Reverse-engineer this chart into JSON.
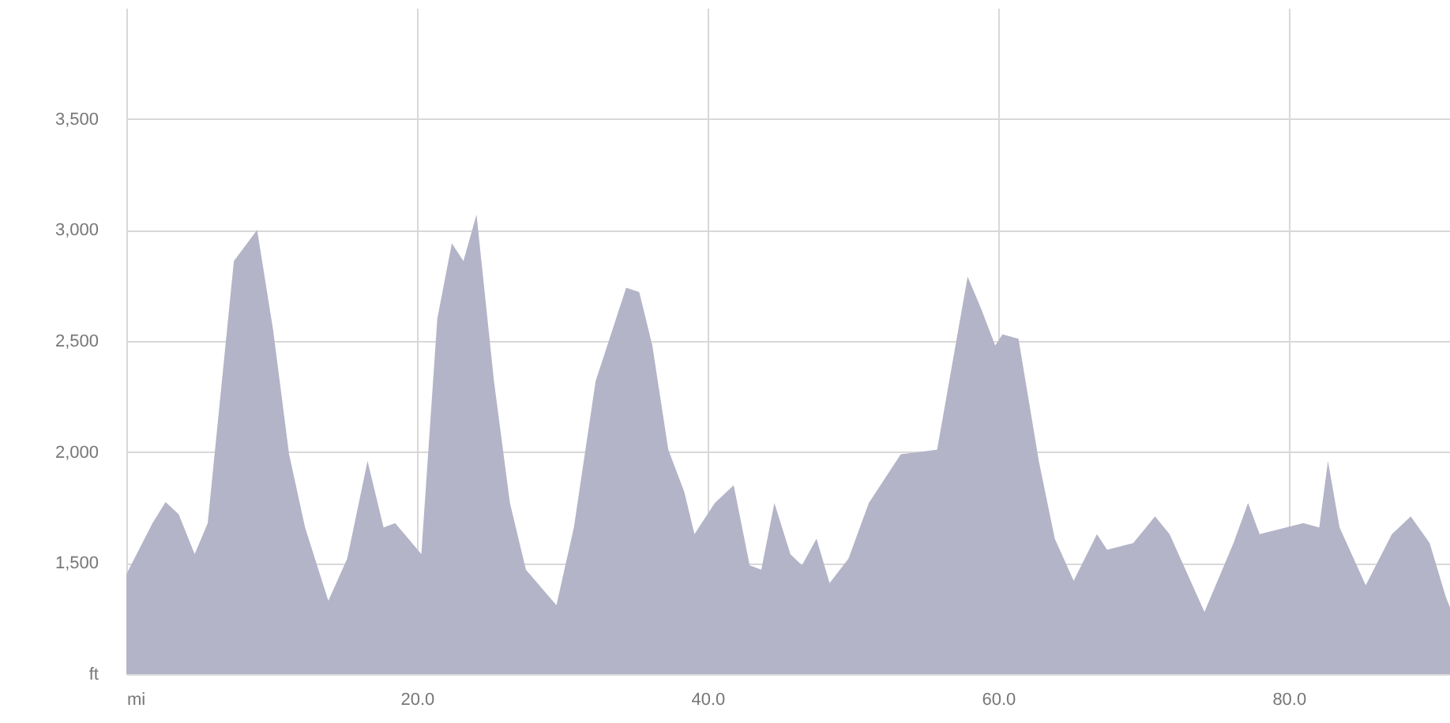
{
  "chart_data": {
    "type": "area",
    "color": "#b4b4c8",
    "grid": true,
    "x": [
      0,
      1.8,
      2.7,
      3.6,
      4.7,
      5.6,
      7.4,
      9.0,
      10.1,
      11.2,
      12.3,
      13.9,
      15.2,
      16.6,
      17.7,
      18.5,
      20.3,
      21.4,
      22.4,
      23.2,
      24.1,
      25.3,
      26.4,
      27.5,
      29.6,
      30.8,
      32.3,
      34.4,
      35.3,
      36.2,
      37.3,
      38.4,
      39.1,
      40.5,
      41.8,
      42.9,
      43.7,
      44.6,
      45.7,
      46.5,
      47.5,
      48.4,
      49.7,
      51.1,
      53.3,
      55.8,
      57.9,
      58.8,
      59.8,
      60.3,
      61.4,
      62.8,
      63.9,
      65.2,
      66.8,
      67.5,
      69.3,
      70.8,
      71.8,
      74.2,
      76.2,
      77.2,
      78.0,
      81.0,
      82.1,
      82.7,
      83.5,
      85.3,
      87.1,
      88.4,
      89.7,
      90.8,
      91.1
    ],
    "values": [
      1450,
      1680,
      1775,
      1720,
      1540,
      1680,
      2860,
      3000,
      2550,
      1990,
      1660,
      1330,
      1520,
      1960,
      1660,
      1680,
      1540,
      2600,
      2940,
      2860,
      3070,
      2320,
      1770,
      1470,
      1310,
      1660,
      2320,
      2740,
      2720,
      2480,
      2010,
      1820,
      1630,
      1770,
      1850,
      1490,
      1470,
      1770,
      1540,
      1490,
      1610,
      1410,
      1520,
      1770,
      1990,
      2010,
      2790,
      2650,
      2480,
      2530,
      2510,
      1960,
      1610,
      1420,
      1630,
      1560,
      1590,
      1710,
      1630,
      1280,
      1590,
      1770,
      1630,
      1680,
      1660,
      1960,
      1660,
      1400,
      1630,
      1710,
      1590,
      1350,
      1300
    ],
    "xlim": [
      0,
      91.1
    ],
    "ylim": [
      1000,
      4000
    ],
    "xticks": [
      {
        "value": 0,
        "label": "mi"
      },
      {
        "value": 20,
        "label": "20.0"
      },
      {
        "value": 40,
        "label": "40.0"
      },
      {
        "value": 60,
        "label": "60.0"
      },
      {
        "value": 80,
        "label": "80.0"
      }
    ],
    "yticks": [
      {
        "value": 1000,
        "label": "ft"
      },
      {
        "value": 1500,
        "label": "1,500"
      },
      {
        "value": 2000,
        "label": "2,000"
      },
      {
        "value": 2500,
        "label": "2,500"
      },
      {
        "value": 3000,
        "label": "3,000"
      },
      {
        "value": 3500,
        "label": "3,500"
      }
    ]
  }
}
